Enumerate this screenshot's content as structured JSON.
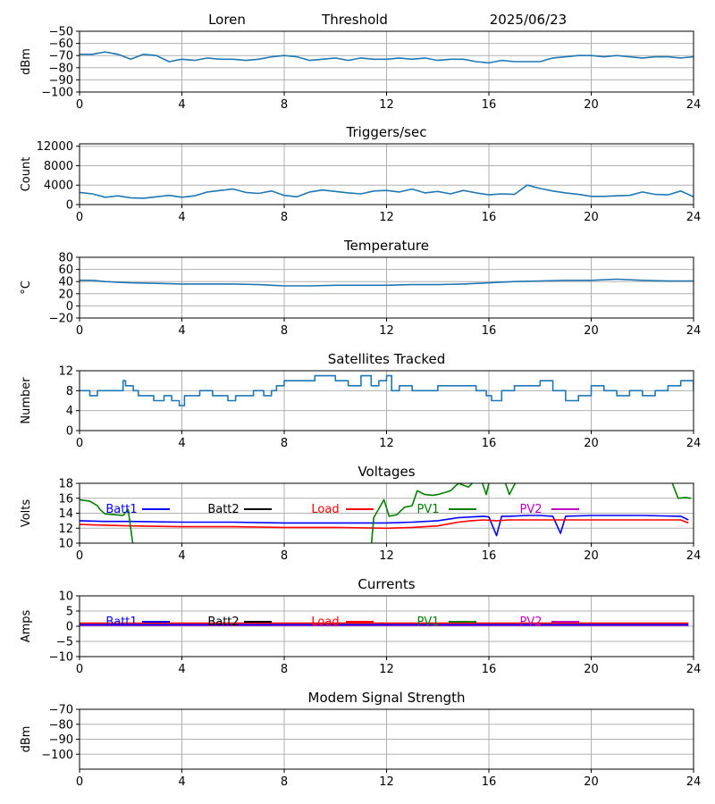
{
  "header": {
    "station": "Loren",
    "mode": "Threshold",
    "date": "2025/06/23"
  },
  "colors": {
    "series_default": "#1f77b4",
    "grid": "#b0b0b0",
    "Batt1": "#0000ff",
    "Batt2": "#000000",
    "Load": "#ff0000",
    "PV1": "#008000",
    "PV2": "#bf00bf"
  },
  "chart_data": [
    {
      "id": "signal",
      "type": "line",
      "title": "",
      "ylabel": "dBm",
      "xlim": [
        0,
        24
      ],
      "ylim": [
        -100,
        -50
      ],
      "xticks": [
        0,
        4,
        8,
        12,
        16,
        20,
        24
      ],
      "yticks": [
        -100,
        -90,
        -80,
        -70,
        -60,
        -50
      ],
      "grid": true,
      "series": [
        {
          "color": "#1f77b4",
          "x": [
            0,
            0.5,
            1,
            1.5,
            2,
            2.5,
            3,
            3.5,
            4,
            4.5,
            5,
            5.5,
            6,
            6.5,
            7,
            7.5,
            8,
            8.5,
            9,
            9.5,
            10,
            10.5,
            11,
            11.5,
            12,
            12.5,
            13,
            13.5,
            14,
            14.5,
            15,
            15.5,
            16,
            16.5,
            17,
            17.5,
            18,
            18.5,
            19,
            19.5,
            20,
            20.5,
            21,
            21.5,
            22,
            22.5,
            23,
            23.5,
            24
          ],
          "values": [
            -69,
            -69,
            -67,
            -69,
            -73,
            -69,
            -70,
            -75,
            -73,
            -74,
            -72,
            -73,
            -73,
            -74,
            -73,
            -71,
            -70,
            -71,
            -74,
            -73,
            -72,
            -74,
            -72,
            -73,
            -73,
            -72,
            -73,
            -72,
            -74,
            -73,
            -73,
            -75,
            -76,
            -74,
            -75,
            -75,
            -75,
            -72,
            -71,
            -70,
            -70,
            -71,
            -70,
            -71,
            -72,
            -71,
            -71,
            -72,
            -71
          ]
        }
      ]
    },
    {
      "id": "triggers",
      "type": "line",
      "title": "Triggers/sec",
      "ylabel": "Count",
      "xlim": [
        0,
        24
      ],
      "ylim": [
        0,
        12500
      ],
      "xticks": [
        0,
        4,
        8,
        12,
        16,
        20,
        24
      ],
      "yticks": [
        0,
        4000,
        8000,
        12000
      ],
      "grid": true,
      "series": [
        {
          "color": "#1f77b4",
          "x": [
            0,
            0.5,
            1,
            1.5,
            2,
            2.5,
            3,
            3.5,
            4,
            4.5,
            5,
            5.5,
            6,
            6.5,
            7,
            7.5,
            8,
            8.5,
            9,
            9.5,
            10,
            10.5,
            11,
            11.5,
            12,
            12.5,
            13,
            13.5,
            14,
            14.5,
            15,
            15.5,
            16,
            16.5,
            17,
            17.5,
            18,
            18.5,
            19,
            19.5,
            20,
            20.5,
            21,
            21.5,
            22,
            22.5,
            23,
            23.5,
            24
          ],
          "values": [
            2500,
            2200,
            1500,
            1800,
            1400,
            1300,
            1600,
            1900,
            1500,
            1800,
            2600,
            2900,
            3200,
            2500,
            2300,
            2800,
            1900,
            1600,
            2600,
            3000,
            2700,
            2400,
            2200,
            2800,
            2900,
            2600,
            3200,
            2400,
            2700,
            2200,
            2900,
            2400,
            2000,
            2200,
            2100,
            4000,
            3300,
            2800,
            2400,
            2100,
            1700,
            1700,
            1800,
            1900,
            2600,
            2100,
            2000,
            2800,
            1600
          ]
        }
      ]
    },
    {
      "id": "temperature",
      "type": "line",
      "title": "Temperature",
      "ylabel": "°C",
      "xlim": [
        0,
        24
      ],
      "ylim": [
        -20,
        80
      ],
      "xticks": [
        0,
        4,
        8,
        12,
        16,
        20,
        24
      ],
      "yticks": [
        -20,
        0,
        20,
        40,
        60,
        80
      ],
      "grid": true,
      "series": [
        {
          "color": "#1f77b4",
          "x": [
            0,
            0.5,
            1,
            2,
            3,
            4,
            5,
            6,
            7,
            7.5,
            8,
            9,
            10,
            11,
            12,
            13,
            14,
            15,
            16,
            17,
            18,
            19,
            20,
            21,
            22,
            23,
            24
          ],
          "values": [
            42,
            42,
            40,
            38,
            37,
            36,
            36,
            36,
            35,
            34,
            33,
            33,
            34,
            34,
            34,
            35,
            35,
            36,
            38,
            40,
            41,
            42,
            42,
            44,
            42,
            41,
            41
          ]
        }
      ]
    },
    {
      "id": "satellites",
      "type": "line",
      "title": "Satellites Tracked",
      "ylabel": "Number",
      "xlim": [
        0,
        24
      ],
      "ylim": [
        0,
        12
      ],
      "xticks": [
        0,
        4,
        8,
        12,
        16,
        20,
        24
      ],
      "yticks": [
        0,
        4,
        8,
        12
      ],
      "grid": true,
      "series": [
        {
          "color": "#1f77b4",
          "step": true,
          "x": [
            0,
            0.4,
            0.7,
            1.7,
            1.8,
            2.1,
            2.3,
            2.9,
            3.3,
            3.6,
            3.9,
            4.1,
            4.7,
            5.2,
            5.8,
            6.1,
            6.5,
            6.8,
            7.2,
            7.5,
            7.7,
            8.0,
            8.7,
            9.2,
            10.0,
            10.5,
            11.0,
            11.4,
            11.7,
            12.0,
            12.2,
            12.5,
            13.0,
            14.0,
            14.3,
            14.8,
            15.5,
            15.9,
            16.1,
            16.5,
            17.0,
            17.5,
            18.0,
            18.5,
            19.0,
            19.5,
            20.0,
            20.5,
            21.0,
            21.5,
            22.0,
            22.5,
            23.0,
            23.5,
            24
          ],
          "values": [
            8,
            7,
            8,
            10,
            9,
            8,
            7,
            6,
            7,
            6,
            5,
            7,
            8,
            7,
            6,
            7,
            7,
            8,
            7,
            8,
            9,
            10,
            10,
            11,
            10,
            9,
            11,
            9,
            10,
            11,
            8,
            9,
            8,
            9,
            9,
            9,
            8,
            7,
            6,
            8,
            9,
            9,
            10,
            8,
            6,
            7,
            9,
            8,
            7,
            8,
            7,
            8,
            9,
            10,
            8
          ]
        }
      ]
    },
    {
      "id": "voltages",
      "type": "line",
      "title": "Voltages",
      "ylabel": "Volts",
      "xlim": [
        0,
        24
      ],
      "ylim": [
        10,
        18
      ],
      "xticks": [
        0,
        4,
        8,
        12,
        16,
        20,
        24
      ],
      "yticks": [
        10,
        12,
        14,
        16,
        18
      ],
      "grid": true,
      "legend": [
        "Batt1",
        "Batt2",
        "Load",
        "PV1",
        "PV2"
      ],
      "series": [
        {
          "name": "Batt1",
          "color": "#0000ff",
          "x": [
            0,
            1,
            2,
            4,
            6,
            8,
            10,
            12,
            13,
            14,
            14.8,
            15.3,
            15.8,
            16.0,
            16.3,
            16.5,
            16.8,
            17.5,
            18.0,
            18.5,
            18.8,
            19.0,
            20,
            22,
            23.5,
            23.8
          ],
          "values": [
            13.0,
            12.9,
            12.9,
            12.8,
            12.8,
            12.7,
            12.7,
            12.7,
            12.8,
            13.0,
            13.4,
            13.5,
            13.6,
            13.5,
            11.0,
            13.6,
            13.6,
            13.7,
            13.7,
            13.6,
            11.3,
            13.6,
            13.7,
            13.7,
            13.6,
            13.1
          ]
        },
        {
          "name": "Load",
          "color": "#ff0000",
          "x": [
            0,
            1,
            2,
            4,
            6,
            8,
            10,
            12,
            13,
            14,
            14.8,
            15.3,
            15.8,
            16.3,
            16.8,
            18,
            20,
            22,
            23.5,
            23.8
          ],
          "values": [
            12.5,
            12.4,
            12.3,
            12.2,
            12.2,
            12.1,
            12.1,
            12.0,
            12.1,
            12.3,
            12.8,
            13.0,
            13.1,
            13.0,
            13.1,
            13.1,
            13.1,
            13.1,
            13.1,
            12.7
          ]
        },
        {
          "name": "PV1",
          "color": "#008000",
          "x": [
            0,
            0.4,
            0.7,
            0.8,
            1.0,
            1.4,
            1.7,
            1.9,
            2.1,
            11.4,
            11.5,
            11.9,
            12.1,
            12.4,
            12.7,
            13.0,
            13.2,
            13.5,
            13.8,
            14.0,
            14.5,
            14.8,
            15.2,
            15.5,
            15.7,
            15.9,
            16.1,
            16.3,
            16.6,
            16.8,
            17.1,
            17.3,
            23.0,
            23.4,
            23.7,
            23.9
          ],
          "values": [
            15.8,
            15.6,
            15.0,
            14.5,
            13.9,
            13.8,
            13.7,
            14.5,
            9.5,
            9.5,
            13.4,
            15.8,
            13.6,
            13.8,
            14.8,
            15.0,
            17.0,
            16.5,
            16.4,
            16.5,
            17.0,
            18.0,
            17.5,
            18.5,
            18.5,
            16.5,
            19.5,
            19.5,
            18.5,
            16.5,
            18.5,
            19.5,
            19.5,
            16.0,
            16.1,
            16.0
          ]
        }
      ]
    },
    {
      "id": "currents",
      "type": "line",
      "title": "Currents",
      "ylabel": "Amps",
      "xlim": [
        0,
        24
      ],
      "ylim": [
        -10,
        10
      ],
      "xticks": [
        0,
        4,
        8,
        12,
        16,
        20,
        24
      ],
      "yticks": [
        -10,
        -5,
        0,
        5,
        10
      ],
      "grid": true,
      "legend": [
        "Batt1",
        "Batt2",
        "Load",
        "PV1",
        "PV2"
      ],
      "series": [
        {
          "name": "Load",
          "color": "#ff0000",
          "x": [
            0,
            4,
            8,
            12,
            16,
            20,
            23.8
          ],
          "values": [
            1.0,
            1.0,
            1.0,
            1.0,
            1.0,
            1.0,
            1.0
          ]
        },
        {
          "name": "PV2",
          "color": "#bf00bf",
          "x": [
            0,
            4,
            8,
            12,
            16,
            20,
            23.8
          ],
          "values": [
            0.3,
            0.3,
            0.3,
            0.3,
            0.3,
            0.3,
            0.3
          ]
        },
        {
          "name": "Batt1",
          "color": "#0000ff",
          "x": [
            0,
            4,
            8,
            12,
            16,
            20,
            23.8
          ],
          "values": [
            0.5,
            0.5,
            0.5,
            0.5,
            0.5,
            0.5,
            0.5
          ]
        }
      ]
    },
    {
      "id": "modem",
      "type": "line",
      "title": "Modem Signal Strength",
      "ylabel": "dBm",
      "xlim": [
        0,
        24
      ],
      "ylim": [
        -110,
        -70
      ],
      "xticks": [
        0,
        4,
        8,
        12,
        16,
        20,
        24
      ],
      "yticks": [
        -100,
        -90,
        -80,
        -70
      ],
      "grid": true,
      "series": []
    }
  ]
}
